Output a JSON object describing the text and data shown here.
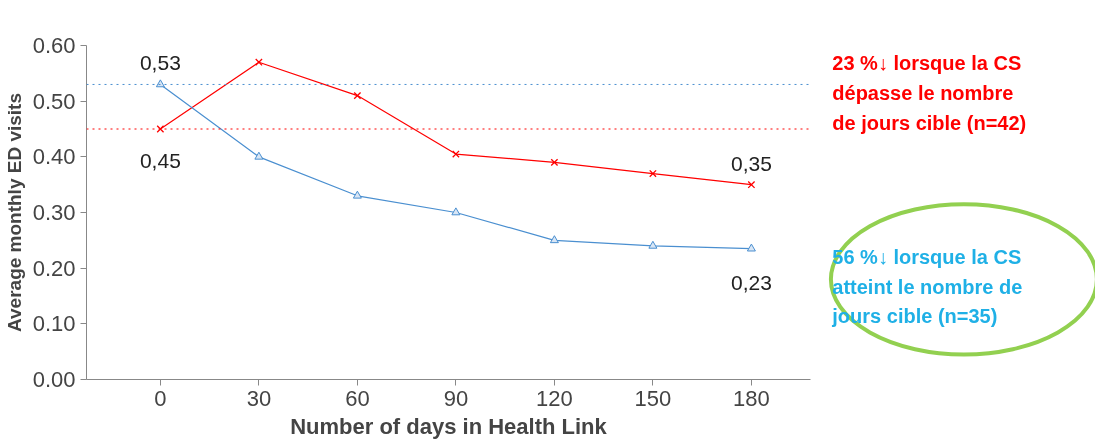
{
  "chart_data": {
    "type": "line",
    "xlabel": "Number of days in Health Link",
    "ylabel": "Average monthly ED visits",
    "categories": [
      "0",
      "30",
      "60",
      "90",
      "120",
      "150",
      "180"
    ],
    "series": [
      {
        "color": "#ff0000",
        "marker": "cross",
        "values": [
          0.45,
          0.57,
          0.51,
          0.405,
          0.39,
          0.37,
          0.35
        ]
      },
      {
        "color": "#4a8fd0",
        "marker": "triangle",
        "values": [
          0.53,
          0.4,
          0.33,
          0.3,
          0.25,
          0.24,
          0.235
        ]
      }
    ],
    "ylim": [
      0,
      0.6
    ],
    "yticks": [
      {
        "value": 0,
        "label": "0.00"
      },
      {
        "value": 0.1,
        "label": "0.10"
      },
      {
        "value": 0.2,
        "label": "0.20"
      },
      {
        "value": 0.3,
        "label": "0.30"
      },
      {
        "value": 0.4,
        "label": "0.40"
      },
      {
        "value": 0.5,
        "label": "0.50"
      },
      {
        "value": 0.6,
        "label": "0.60"
      }
    ],
    "grid": false,
    "ref_lines": [
      {
        "axis": "y",
        "value": 0.53,
        "color": "#4a8fd0",
        "line_style": "dotted"
      },
      {
        "axis": "y",
        "value": 0.45,
        "color": "#ff0000",
        "line_style": "dotted"
      }
    ],
    "annotations": [
      {
        "text": "0,53",
        "x": "0",
        "y": 0.53
      },
      {
        "text": "0,45",
        "x": "0",
        "y": 0.45
      },
      {
        "text": "0,35",
        "x": "180",
        "y": 0.35
      },
      {
        "text": "0,23",
        "x": "180",
        "y": 0.23
      },
      "23 %↓ lorsque la CS\ndépasse le nombre\nde jours cible (n=42)",
      "56 %↓ lorsque la CS\natteint le nombre de\njours cible (n=35)"
    ]
  }
}
